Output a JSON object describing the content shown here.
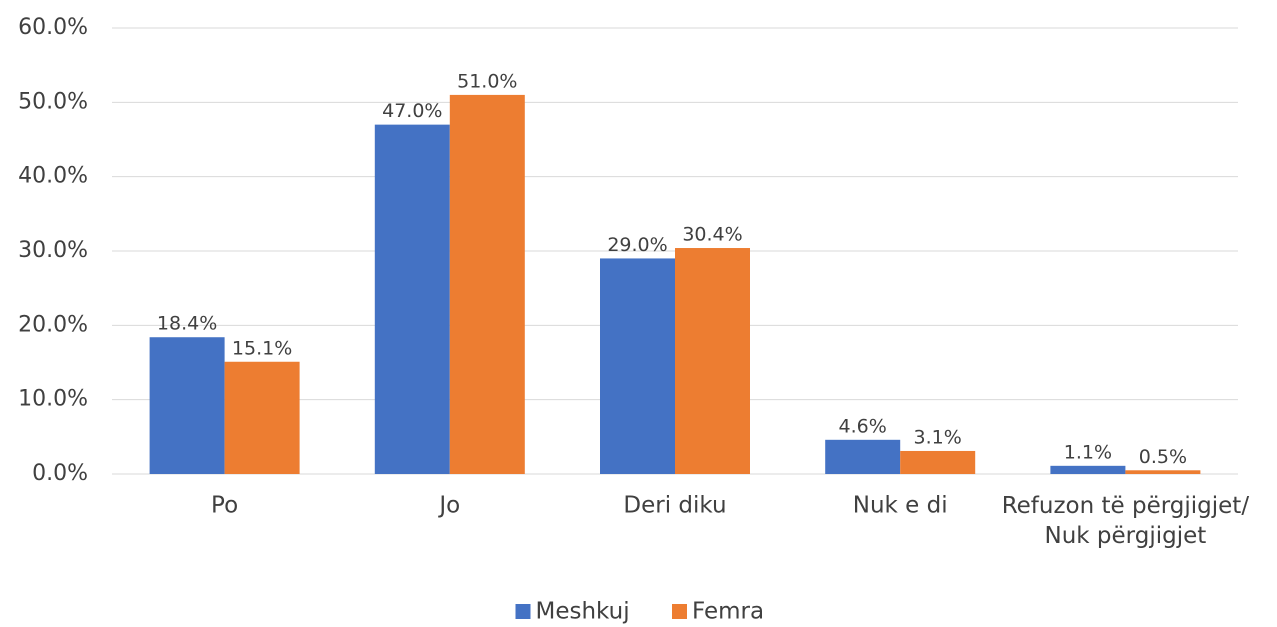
{
  "chart_data": {
    "type": "bar",
    "categories": [
      "Po",
      "Jo",
      "Deri diku",
      "Nuk e di",
      "Refuzon të përgjigjet/\nNuk përgjigjet"
    ],
    "series": [
      {
        "name": "Meshkuj",
        "color": "#4472c4",
        "values": [
          18.4,
          47.0,
          29.0,
          4.6,
          1.1
        ],
        "value_labels": [
          "18.4%",
          "47.0%",
          "29.0%",
          "4.6%",
          "1.1%"
        ]
      },
      {
        "name": "Femra",
        "color": "#ed7d31",
        "values": [
          15.1,
          51.0,
          30.4,
          3.1,
          0.5
        ],
        "value_labels": [
          "15.1%",
          "51.0%",
          "30.4%",
          "3.1%",
          "0.5%"
        ]
      }
    ],
    "ylim": [
      0,
      60
    ],
    "yticks": [
      {
        "value": 0,
        "label": "0.0%"
      },
      {
        "value": 10,
        "label": "10.0%"
      },
      {
        "value": 20,
        "label": "20.0%"
      },
      {
        "value": 30,
        "label": "30.0%"
      },
      {
        "value": 40,
        "label": "40.0%"
      },
      {
        "value": 50,
        "label": "50.0%"
      },
      {
        "value": 60,
        "label": "60.0%"
      }
    ],
    "grid": true,
    "legend": "bottom"
  }
}
